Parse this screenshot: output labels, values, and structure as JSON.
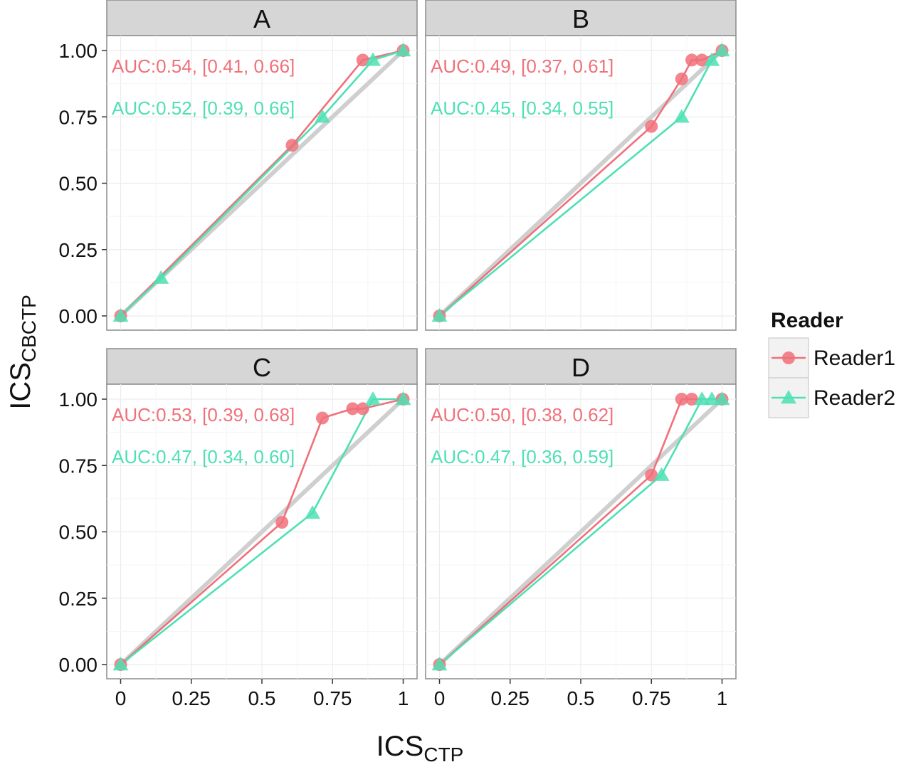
{
  "chart_data": {
    "type": "line",
    "xlabel": "ICS",
    "xlabel_sub": "CTP",
    "ylabel": "ICS",
    "ylabel_sub": "CBCTP",
    "xlim": [
      0,
      1
    ],
    "ylim": [
      0,
      1
    ],
    "x_ticks": [
      0,
      0.25,
      0.5,
      0.75,
      1
    ],
    "x_tick_labels": [
      "0",
      "0.25",
      "0.5",
      "0.75",
      "1"
    ],
    "y_ticks": [
      0,
      0.25,
      0.5,
      0.75,
      1
    ],
    "y_tick_labels": [
      "0.00",
      "0.25",
      "0.50",
      "0.75",
      "1.00"
    ],
    "grid": true,
    "reference_line": [
      [
        0,
        0
      ],
      [
        1,
        1
      ]
    ],
    "legend": {
      "title": "Reader",
      "placement": "right",
      "entries": [
        {
          "name": "Reader1",
          "color": "#f0707a",
          "marker": "circle"
        },
        {
          "name": "Reader2",
          "color": "#4ee0b4",
          "marker": "triangle"
        }
      ]
    },
    "panels": [
      {
        "title": "A",
        "annotations": [
          "AUC:0.54, [0.41, 0.66]",
          "AUC:0.52, [0.39, 0.66]"
        ],
        "series": [
          {
            "name": "Reader1",
            "x": [
              0,
              0.607,
              0.857,
              1
            ],
            "y": [
              0,
              0.643,
              0.964,
              1
            ]
          },
          {
            "name": "Reader2",
            "x": [
              0,
              0.143,
              0.714,
              0.893,
              1
            ],
            "y": [
              0,
              0.143,
              0.75,
              0.964,
              1
            ]
          }
        ]
      },
      {
        "title": "B",
        "annotations": [
          "AUC:0.49, [0.37, 0.61]",
          "AUC:0.45, [0.34, 0.55]"
        ],
        "series": [
          {
            "name": "Reader1",
            "x": [
              0,
              0.75,
              0.857,
              0.893,
              0.929,
              1
            ],
            "y": [
              0,
              0.714,
              0.893,
              0.964,
              0.964,
              1
            ]
          },
          {
            "name": "Reader2",
            "x": [
              0,
              0.857,
              0.964,
              1
            ],
            "y": [
              0,
              0.75,
              0.964,
              1
            ]
          }
        ]
      },
      {
        "title": "C",
        "annotations": [
          "AUC:0.53, [0.39, 0.68]",
          "AUC:0.47, [0.34, 0.60]"
        ],
        "series": [
          {
            "name": "Reader1",
            "x": [
              0,
              0.571,
              0.714,
              0.821,
              0.857,
              1
            ],
            "y": [
              0,
              0.536,
              0.929,
              0.964,
              0.964,
              1
            ]
          },
          {
            "name": "Reader2",
            "x": [
              0,
              0.679,
              0.893,
              1
            ],
            "y": [
              0,
              0.571,
              1,
              1
            ]
          }
        ]
      },
      {
        "title": "D",
        "annotations": [
          "AUC:0.50, [0.38, 0.62]",
          "AUC:0.47, [0.36, 0.59]"
        ],
        "series": [
          {
            "name": "Reader1",
            "x": [
              0,
              0.75,
              0.857,
              0.893,
              1
            ],
            "y": [
              0,
              0.714,
              1,
              1,
              1
            ]
          },
          {
            "name": "Reader2",
            "x": [
              0,
              0.786,
              0.929,
              0.964,
              1
            ],
            "y": [
              0,
              0.714,
              1,
              1,
              1
            ]
          }
        ]
      }
    ]
  }
}
